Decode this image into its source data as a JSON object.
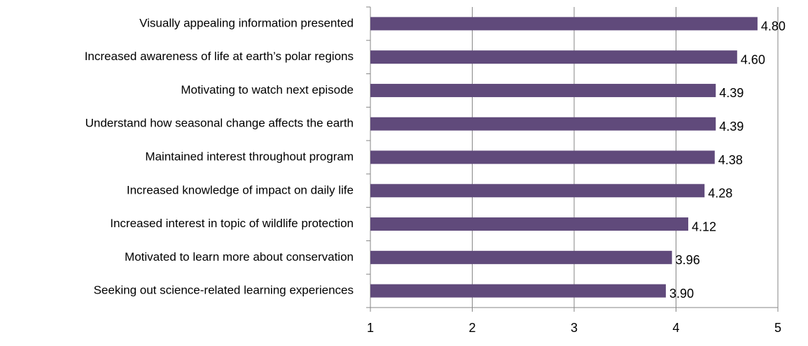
{
  "chart_data": {
    "type": "bar",
    "orientation": "horizontal",
    "categories": [
      "Visually appealing information presented",
      "Increased awareness of life at earth’s polar regions",
      "Motivating to watch next episode",
      "Understand how seasonal change affects the earth",
      "Maintained  interest throughout program",
      "Increased knowledge of impact on daily life",
      "Increased interest in topic of wildlife protection",
      "Motivated to learn more about conservation",
      "Seeking out science-related learning experiences"
    ],
    "values": [
      4.8,
      4.6,
      4.39,
      4.39,
      4.38,
      4.28,
      4.12,
      3.96,
      3.9
    ],
    "value_labels": [
      "4.80",
      "4.60",
      "4.39",
      "4.39",
      "4.38",
      "4.28",
      "4.12",
      "3.96",
      "3.90"
    ],
    "color": "#604a7b",
    "xlim": [
      1,
      5
    ],
    "xticks": [
      1,
      2,
      3,
      4,
      5
    ],
    "grid": true
  }
}
